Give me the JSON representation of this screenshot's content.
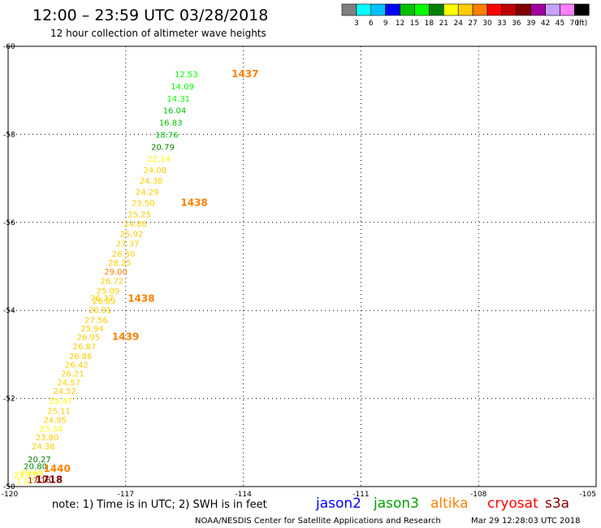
{
  "header": {
    "title": "12:00 – 23:59 UTC 03/28/2018",
    "subtitle": "12 hour collection of altimeter wave heights"
  },
  "legend": {
    "colors": [
      "#808080",
      "#00ffff",
      "#00c0ff",
      "#0000ff",
      "#00c000",
      "#00ff00",
      "#008000",
      "#ffff00",
      "#ffcc00",
      "#ff8000",
      "#ff0000",
      "#c00000",
      "#800000",
      "#a000a0",
      "#c8a0ff",
      "#ff80ff",
      "#000000"
    ],
    "ticks": [
      "3",
      "6",
      "9",
      "12",
      "15",
      "18",
      "21",
      "24",
      "27",
      "30",
      "33",
      "36",
      "39",
      "42",
      "45",
      "70"
    ],
    "unit": "(ft)"
  },
  "chart_data": {
    "type": "scatter",
    "xlim": [
      -120,
      -105
    ],
    "ylim": [
      -60,
      -50
    ],
    "xticks": [
      "-120",
      "-117",
      "-114",
      "-111",
      "-108",
      "-105"
    ],
    "yticks": [
      "-50",
      "-52",
      "-54",
      "-56",
      "-58",
      "-60"
    ],
    "grid": true,
    "points": [
      {
        "x": -119.8,
        "y": -50.05,
        "v": "7.37",
        "c": "#ffff00"
      },
      {
        "x": -119.5,
        "y": -50.08,
        "v": "17.18",
        "c": "#800000"
      },
      {
        "x": -119.85,
        "y": -50.2,
        "v": "22.73",
        "c": "#ffff00"
      },
      {
        "x": -119.7,
        "y": -50.25,
        "v": "20.69",
        "c": "#ffff00"
      },
      {
        "x": -119.6,
        "y": -50.4,
        "v": "20.80",
        "c": "#008000"
      },
      {
        "x": -119.5,
        "y": -50.55,
        "v": "20.27",
        "c": "#008000"
      },
      {
        "x": -119.4,
        "y": -50.85,
        "v": "24.38",
        "c": "#ffcc00"
      },
      {
        "x": -119.3,
        "y": -51.05,
        "v": "23.80",
        "c": "#ffcc00"
      },
      {
        "x": -119.2,
        "y": -51.25,
        "v": "23.34",
        "c": "#ffff00"
      },
      {
        "x": -119.1,
        "y": -51.45,
        "v": "24.95",
        "c": "#ffcc00"
      },
      {
        "x": -119.0,
        "y": -51.65,
        "v": "25.11",
        "c": "#ffcc00"
      },
      {
        "x": -118.95,
        "y": -51.88,
        "v": "25.47",
        "c": "#ffff00"
      },
      {
        "x": -118.85,
        "y": -52.1,
        "v": "24.52",
        "c": "#ffcc00"
      },
      {
        "x": -118.75,
        "y": -52.3,
        "v": "24.57",
        "c": "#ffcc00"
      },
      {
        "x": -118.65,
        "y": -52.5,
        "v": "26.21",
        "c": "#ffcc00"
      },
      {
        "x": -118.55,
        "y": -52.7,
        "v": "26.42",
        "c": "#ffcc00"
      },
      {
        "x": -118.45,
        "y": -52.9,
        "v": "26.86",
        "c": "#ffcc00"
      },
      {
        "x": -118.35,
        "y": -53.12,
        "v": "26.87",
        "c": "#ffcc00"
      },
      {
        "x": -118.25,
        "y": -53.33,
        "v": "26.95",
        "c": "#ffcc00"
      },
      {
        "x": -118.15,
        "y": -53.52,
        "v": "25.94",
        "c": "#ffcc00"
      },
      {
        "x": -118.05,
        "y": -53.72,
        "v": "27.56",
        "c": "#ffcc00"
      },
      {
        "x": -117.95,
        "y": -53.95,
        "v": "26.91",
        "c": "#ffcc00"
      },
      {
        "x": -117.85,
        "y": -54.15,
        "v": "26.89",
        "c": "#ffcc00"
      },
      {
        "x": -117.9,
        "y": -54.22,
        "v": "26.27",
        "c": "#ffcc00"
      },
      {
        "x": -117.75,
        "y": -54.38,
        "v": "25.09",
        "c": "#ffcc00"
      },
      {
        "x": -117.65,
        "y": -54.6,
        "v": "26.72",
        "c": "#ffcc00"
      },
      {
        "x": -117.55,
        "y": -54.82,
        "v": "29.00",
        "c": "#ff8000"
      },
      {
        "x": -117.45,
        "y": -55.02,
        "v": "28.25",
        "c": "#ffcc00"
      },
      {
        "x": -117.35,
        "y": -55.22,
        "v": "26.50",
        "c": "#ffcc00"
      },
      {
        "x": -117.25,
        "y": -55.45,
        "v": "27.37",
        "c": "#ffcc00"
      },
      {
        "x": -117.15,
        "y": -55.67,
        "v": "25.92",
        "c": "#ffcc00"
      },
      {
        "x": -117.05,
        "y": -55.9,
        "v": "24.88",
        "c": "#ffcc00"
      },
      {
        "x": -116.95,
        "y": -56.12,
        "v": "25.25",
        "c": "#ffcc00"
      },
      {
        "x": -116.85,
        "y": -56.37,
        "v": "23.50",
        "c": "#ffcc00"
      },
      {
        "x": -116.75,
        "y": -56.62,
        "v": "24.29",
        "c": "#ffcc00"
      },
      {
        "x": -116.65,
        "y": -56.88,
        "v": "24.38",
        "c": "#ffcc00"
      },
      {
        "x": -116.55,
        "y": -57.12,
        "v": "24.08",
        "c": "#ffcc00"
      },
      {
        "x": -116.45,
        "y": -57.38,
        "v": "22.14",
        "c": "#ffff00"
      },
      {
        "x": -116.35,
        "y": -57.65,
        "v": "20.79",
        "c": "#008000"
      },
      {
        "x": -116.25,
        "y": -57.92,
        "v": "18.76",
        "c": "#00c000"
      },
      {
        "x": -116.15,
        "y": -58.2,
        "v": "16.83",
        "c": "#00c000"
      },
      {
        "x": -116.05,
        "y": -58.48,
        "v": "16.04",
        "c": "#00c000"
      },
      {
        "x": -115.95,
        "y": -58.75,
        "v": "14.31",
        "c": "#00ff00"
      },
      {
        "x": -115.85,
        "y": -59.02,
        "v": "14.09",
        "c": "#00ff00"
      },
      {
        "x": -115.75,
        "y": -59.3,
        "v": "12.53",
        "c": "#00ff00"
      }
    ],
    "time_labels": [
      {
        "x": -119.3,
        "y": -50.08,
        "t": "1718",
        "c": "#800000"
      },
      {
        "x": -119.1,
        "y": -50.33,
        "t": "1440",
        "c": "#ff8000"
      },
      {
        "x": -117.35,
        "y": -53.33,
        "t": "1439",
        "c": "#ff8000"
      },
      {
        "x": -116.95,
        "y": -54.2,
        "t": "1438",
        "c": "#ff8000"
      },
      {
        "x": -115.6,
        "y": -56.37,
        "t": "1438",
        "c": "#ff8000"
      },
      {
        "x": -114.3,
        "y": -59.3,
        "t": "1437",
        "c": "#ff8000"
      }
    ]
  },
  "footnote": {
    "note": "note: 1) Time is in UTC; 2) SWH is in feet",
    "satellites": [
      {
        "name": "jason2",
        "color": "#0000ff"
      },
      {
        "name": "jason3",
        "color": "#00a000"
      },
      {
        "name": "altika",
        "color": "#ff8000"
      },
      {
        "name": "cryosat",
        "color": "#ff0000"
      },
      {
        "name": "s3a",
        "color": "#800000"
      }
    ],
    "credit": "NOAA/NESDIS Center for Satellite Applications and Research",
    "timestamp": "Mar 29 12:28:03 UTC 2018"
  }
}
